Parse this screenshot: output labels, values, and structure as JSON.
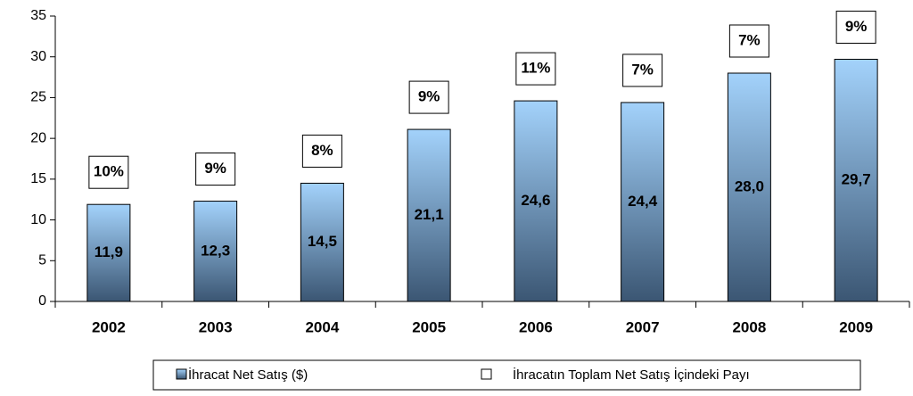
{
  "chart_data": {
    "type": "bar",
    "categories": [
      "2002",
      "2003",
      "2004",
      "2005",
      "2006",
      "2007",
      "2008",
      "2009"
    ],
    "series": [
      {
        "name": "İhracat Net Satış ($)",
        "color": "#a3d2fb",
        "values": [
          11.9,
          12.3,
          14.5,
          21.1,
          24.6,
          24.4,
          28.0,
          29.7
        ],
        "value_labels": [
          "11,9",
          "12,3",
          "14,5",
          "21,1",
          "24,6",
          "24,4",
          "28,0",
          "29,7"
        ]
      },
      {
        "name": "İhracatın Toplam Net Satış İçindeki Payı",
        "color": "#ffffff",
        "values": [
          10,
          9,
          8,
          9,
          11,
          7,
          7,
          9
        ],
        "value_labels": [
          "10%",
          "9%",
          "8%",
          "9%",
          "11%",
          "7%",
          "7%",
          "9%"
        ]
      }
    ],
    "ylim": [
      0,
      35
    ],
    "yticks": [
      0,
      5,
      10,
      15,
      20,
      25,
      30,
      35
    ],
    "grid": false,
    "legend": "bottom"
  }
}
